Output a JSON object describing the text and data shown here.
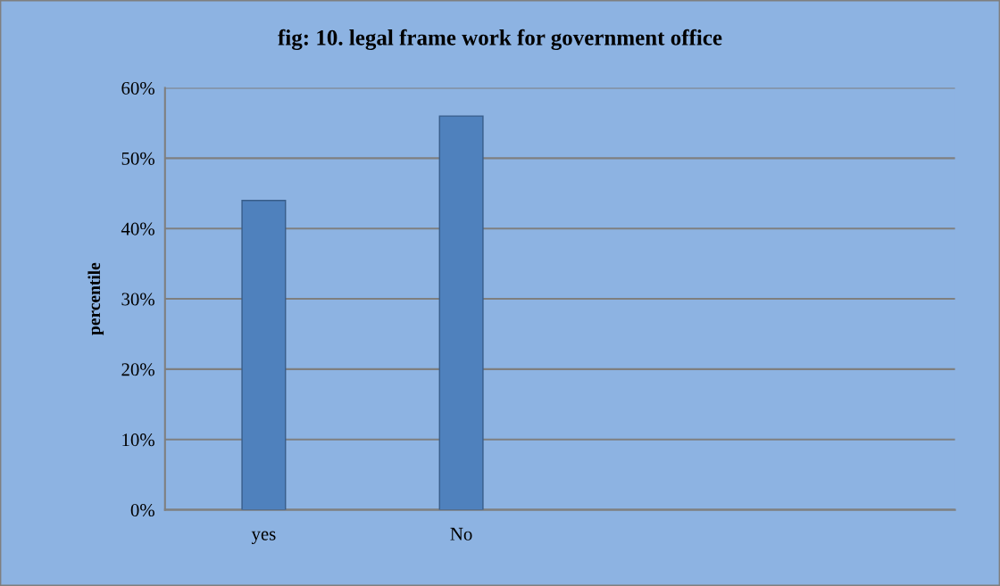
{
  "chart_data": {
    "type": "bar",
    "title": "fig: 10. legal frame work for government office",
    "ylabel": "percentile",
    "categories": [
      "yes",
      "No",
      null,
      null
    ],
    "values": [
      44,
      56,
      null,
      null
    ],
    "color": "#4f81bd",
    "ylim": [
      0,
      60
    ],
    "yticks": [
      {
        "value": 0,
        "label": "0%"
      },
      {
        "value": 10,
        "label": "10%"
      },
      {
        "value": 20,
        "label": "20%"
      },
      {
        "value": 30,
        "label": "30%"
      },
      {
        "value": 40,
        "label": "40%"
      },
      {
        "value": 50,
        "label": "50%"
      },
      {
        "value": 60,
        "label": "60%"
      }
    ],
    "grid": "y"
  }
}
